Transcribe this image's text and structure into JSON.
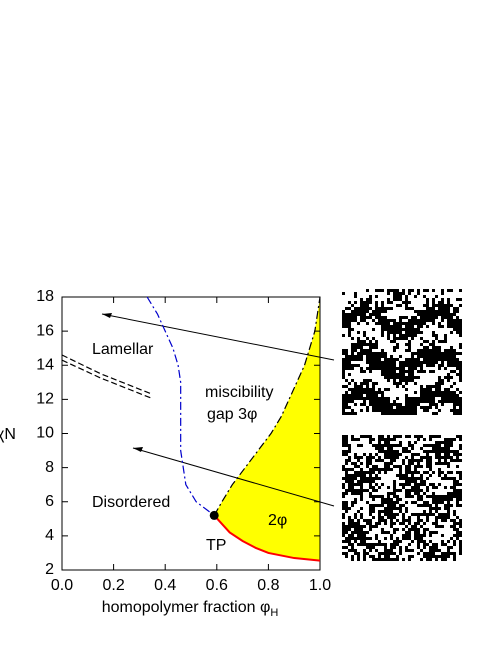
{
  "chart_data": {
    "type": "line",
    "xlabel": "homopolymer fraction φ",
    "xlabel_sub": "H",
    "ylabel": "χN",
    "xlim": [
      0.0,
      1.0
    ],
    "ylim": [
      2,
      18
    ],
    "xticks": [
      {
        "value": 0.0,
        "label": "0.0"
      },
      0.2,
      0.4,
      0.6,
      0.8,
      {
        "value": 1.0,
        "label": "1.0"
      }
    ],
    "yticks": [
      2,
      4,
      6,
      8,
      10,
      12,
      14,
      16,
      18
    ],
    "annotations": [
      "Lamellar",
      "miscibility",
      "gap 3φ",
      "Disordered",
      "2φ",
      "TP"
    ],
    "fill_color": "#ffff00",
    "lines": [
      {
        "color": "#0000cc",
        "dash": "dashdot",
        "x": [
          0.33,
          0.37,
          0.4,
          0.43,
          0.45,
          0.46,
          0.46,
          0.46,
          0.46,
          0.46,
          0.47,
          0.48,
          0.52,
          0.59
        ],
        "y": [
          18,
          17,
          16,
          15,
          14,
          13,
          12,
          11,
          10,
          9,
          8,
          7,
          6,
          5.2
        ]
      },
      {
        "color": "#000000",
        "dash": "dashdot",
        "x": [
          0.59,
          0.62,
          0.66,
          0.71,
          0.76,
          0.81,
          0.85,
          0.88,
          0.91,
          0.94,
          0.96,
          0.98,
          0.99,
          1.0
        ],
        "y": [
          5.2,
          6,
          7,
          8,
          9,
          10,
          11,
          12,
          13,
          14,
          15,
          16,
          17,
          18
        ]
      },
      {
        "color": "#ff0000",
        "dash": "solid",
        "x": [
          0.59,
          0.65,
          0.7,
          0.75,
          0.8,
          0.9,
          1.0
        ],
        "y": [
          5.2,
          4.2,
          3.7,
          3.3,
          3.0,
          2.7,
          2.55
        ]
      },
      {
        "color": "#000000",
        "dash": "dashed",
        "x": [
          0.0,
          0.15,
          0.35
        ],
        "y": [
          14.6,
          13.5,
          12.3
        ]
      },
      {
        "color": "#000000",
        "dash": "dashed",
        "x": [
          0.0,
          0.15,
          0.35
        ],
        "y": [
          14.3,
          13.25,
          12.05
        ]
      }
    ],
    "points": {
      "color": "#000000",
      "x": [
        0.59
      ],
      "y": [
        5.2
      ]
    }
  }
}
